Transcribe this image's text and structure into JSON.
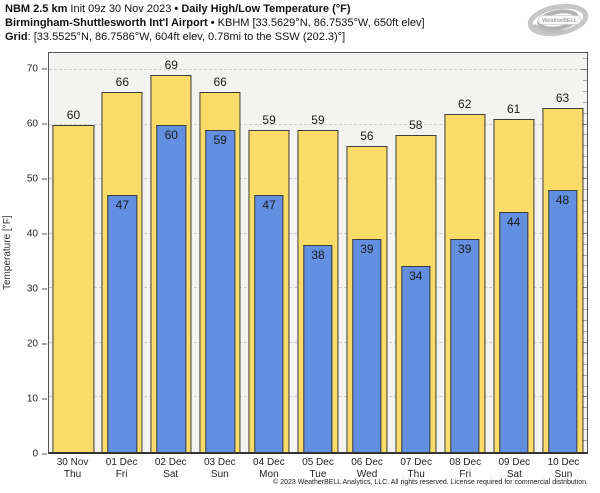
{
  "header": {
    "line1_model": "NBM 2.5 km",
    "line1_init": "Init 09z 30 Nov 2023",
    "bullet": "•",
    "line1_title": "Daily High/Low Temperature (°F)",
    "line2_station": "Birmingham-Shuttlesworth Int'l Airport",
    "line2_details": "KBHM [33.5629°N, 86.7535°W, 650ft elev]",
    "line3_label": "Grid",
    "line3_rest": ": [33.5525°N, 86.7586°W, 604ft elev, 0.78mi to the SSW (202.3)°]",
    "logo_text": "WeatherBELL"
  },
  "chart_data": {
    "type": "bar",
    "title": "Daily High/Low Temperature (°F)",
    "categories": [
      {
        "date": "30 Nov",
        "day": "Thu"
      },
      {
        "date": "01 Dec",
        "day": "Fri"
      },
      {
        "date": "02 Dec",
        "day": "Sat"
      },
      {
        "date": "03 Dec",
        "day": "Sun"
      },
      {
        "date": "04 Dec",
        "day": "Mon"
      },
      {
        "date": "05 Dec",
        "day": "Tue"
      },
      {
        "date": "06 Dec",
        "day": "Wed"
      },
      {
        "date": "07 Dec",
        "day": "Thu"
      },
      {
        "date": "08 Dec",
        "day": "Fri"
      },
      {
        "date": "09 Dec",
        "day": "Sat"
      },
      {
        "date": "10 Dec",
        "day": "Sun"
      }
    ],
    "series": [
      {
        "name": "High",
        "color": "#fbdc68",
        "values": [
          60,
          66,
          69,
          66,
          59,
          59,
          56,
          58,
          62,
          61,
          63
        ]
      },
      {
        "name": "Low",
        "color": "#628fe0",
        "values": [
          null,
          47,
          60,
          59,
          47,
          38,
          39,
          34,
          39,
          44,
          48
        ]
      }
    ],
    "ylabel": "Temperature [°F]",
    "yticks": [
      0,
      10,
      20,
      30,
      40,
      50,
      60,
      70
    ],
    "ylim": [
      0,
      73.1
    ],
    "minor_tick_step": 2,
    "grid": "horizontal-dashed",
    "legend": "none",
    "plot_bg": "#f3f3f1",
    "bar_border": "#3b3b3b"
  },
  "footer": {
    "copyright": "© 2023 WeatherBELL Analytics, LLC. All rights reserved. License required for commercial distribution."
  }
}
